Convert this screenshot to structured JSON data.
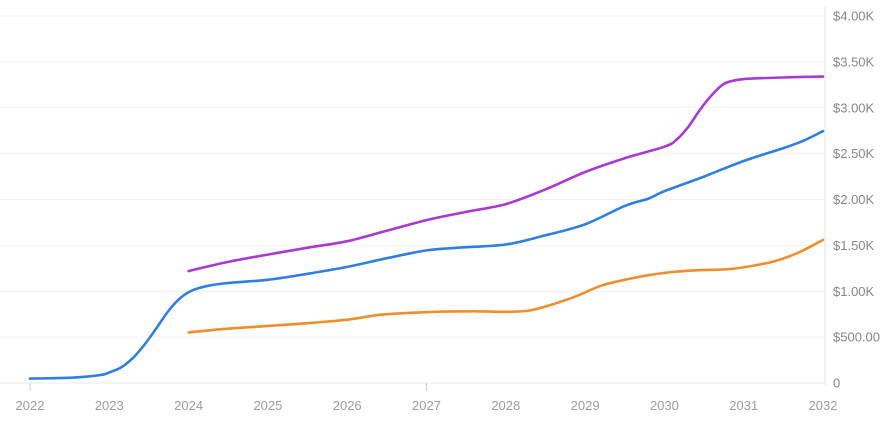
{
  "colors": {
    "background": "#ffffff",
    "gridline": "#f2f2f6",
    "zero_line": "#e9e9ee",
    "axis_line": "#e3e3ea",
    "tick": "#cdcdd4",
    "y_label": "#85858f",
    "x_label": "#9b9ba3",
    "blue_series": "#2e7fe0",
    "orange_series": "#ef8e2d",
    "purple_series": "#a83ad2"
  },
  "chart_data": {
    "type": "line",
    "title": "",
    "legend": "none",
    "grid": "horizontal",
    "x_axis": {
      "labels": [
        "2022",
        "2023",
        "2024",
        "2025",
        "2026",
        "2027",
        "2028",
        "2029",
        "2030",
        "2031",
        "2032"
      ],
      "years": [
        2022,
        2023,
        2024,
        2025,
        2026,
        2027,
        2028,
        2029,
        2030,
        2031,
        2032
      ],
      "tick_years": [
        2022,
        2027
      ],
      "range": [
        2022,
        2032
      ]
    },
    "y_axis": {
      "side": "right",
      "range": [
        0,
        4000
      ],
      "tick_step": 500,
      "ticks": [
        {
          "value": 4000,
          "label": "$4.00K"
        },
        {
          "value": 3500,
          "label": "$3.50K"
        },
        {
          "value": 3000,
          "label": "$3.00K"
        },
        {
          "value": 2500,
          "label": "$2.50K"
        },
        {
          "value": 2000,
          "label": "$2.00K"
        },
        {
          "value": 1500,
          "label": "$1.50K"
        },
        {
          "value": 1000,
          "label": "$1.00K"
        },
        {
          "value": 500,
          "label": "$500.00"
        },
        {
          "value": 0,
          "label": "0"
        }
      ]
    },
    "series": [
      {
        "name": "blue-series",
        "color": "#2e7fe0",
        "points": [
          [
            2022.0,
            48
          ],
          [
            2022.3,
            52
          ],
          [
            2022.6,
            62
          ],
          [
            2022.9,
            88
          ],
          [
            2023.0,
            115
          ],
          [
            2023.15,
            170
          ],
          [
            2023.3,
            275
          ],
          [
            2023.45,
            425
          ],
          [
            2023.6,
            605
          ],
          [
            2023.75,
            790
          ],
          [
            2023.9,
            930
          ],
          [
            2024.05,
            1010
          ],
          [
            2024.25,
            1060
          ],
          [
            2024.5,
            1090
          ],
          [
            2025.0,
            1125
          ],
          [
            2025.5,
            1190
          ],
          [
            2026.0,
            1265
          ],
          [
            2026.5,
            1360
          ],
          [
            2027.0,
            1445
          ],
          [
            2027.4,
            1475
          ],
          [
            2028.0,
            1510
          ],
          [
            2028.5,
            1610
          ],
          [
            2029.0,
            1730
          ],
          [
            2029.5,
            1930
          ],
          [
            2029.8,
            2010
          ],
          [
            2030.0,
            2090
          ],
          [
            2030.5,
            2250
          ],
          [
            2031.0,
            2420
          ],
          [
            2031.5,
            2560
          ],
          [
            2031.75,
            2640
          ],
          [
            2032.0,
            2745
          ]
        ]
      },
      {
        "name": "orange-series",
        "color": "#ef8e2d",
        "points": [
          [
            2024.0,
            550
          ],
          [
            2024.4,
            585
          ],
          [
            2025.0,
            622
          ],
          [
            2025.5,
            652
          ],
          [
            2026.0,
            690
          ],
          [
            2026.4,
            742
          ],
          [
            2026.8,
            765
          ],
          [
            2027.2,
            778
          ],
          [
            2027.6,
            782
          ],
          [
            2028.0,
            776
          ],
          [
            2028.3,
            790
          ],
          [
            2028.6,
            860
          ],
          [
            2028.9,
            950
          ],
          [
            2029.2,
            1060
          ],
          [
            2029.5,
            1125
          ],
          [
            2029.8,
            1175
          ],
          [
            2030.1,
            1210
          ],
          [
            2030.4,
            1228
          ],
          [
            2030.8,
            1240
          ],
          [
            2031.1,
            1275
          ],
          [
            2031.4,
            1330
          ],
          [
            2031.7,
            1425
          ],
          [
            2032.0,
            1560
          ]
        ]
      },
      {
        "name": "purple-series",
        "color": "#a83ad2",
        "points": [
          [
            2024.0,
            1220
          ],
          [
            2024.5,
            1320
          ],
          [
            2025.0,
            1400
          ],
          [
            2025.5,
            1475
          ],
          [
            2026.0,
            1545
          ],
          [
            2026.5,
            1660
          ],
          [
            2027.0,
            1775
          ],
          [
            2027.5,
            1865
          ],
          [
            2028.0,
            1950
          ],
          [
            2028.5,
            2110
          ],
          [
            2029.0,
            2300
          ],
          [
            2029.5,
            2450
          ],
          [
            2030.0,
            2575
          ],
          [
            2030.15,
            2650
          ],
          [
            2030.3,
            2790
          ],
          [
            2030.45,
            2980
          ],
          [
            2030.6,
            3140
          ],
          [
            2030.75,
            3260
          ],
          [
            2030.9,
            3300
          ],
          [
            2031.1,
            3318
          ],
          [
            2031.5,
            3330
          ],
          [
            2032.0,
            3340
          ]
        ]
      }
    ]
  }
}
